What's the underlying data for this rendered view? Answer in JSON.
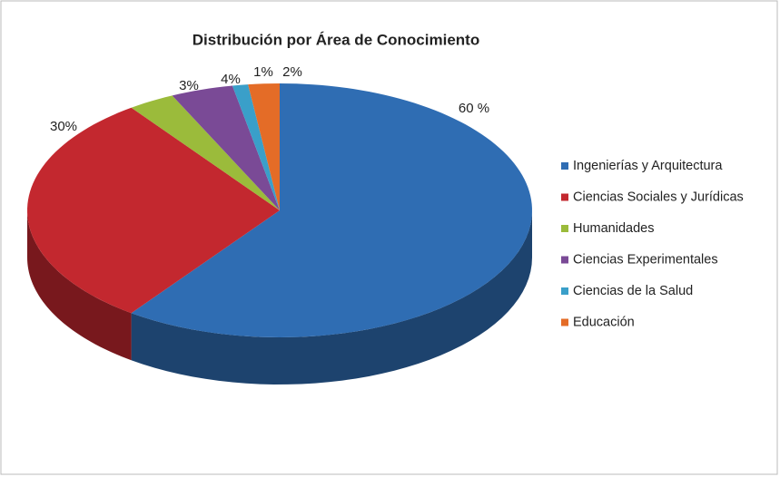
{
  "chart_data": {
    "type": "pie",
    "title": "Distribución por Área de Conocimiento",
    "categories": [
      "Ingenierías y Arquitectura",
      "Ciencias Sociales y Jurídicas",
      "Humanidades",
      "Ciencias Experimentales",
      "Ciencias de la Salud",
      "Educación"
    ],
    "values": [
      60,
      30,
      3,
      4,
      1,
      2
    ],
    "value_labels": [
      "60 %",
      "30%",
      "3%",
      "4%",
      "1%",
      "2%"
    ],
    "colors": [
      "#2f6db3",
      "#c3282f",
      "#9bbb3b",
      "#7a4a96",
      "#3a9fc9",
      "#e46c27"
    ],
    "legend": "right"
  }
}
